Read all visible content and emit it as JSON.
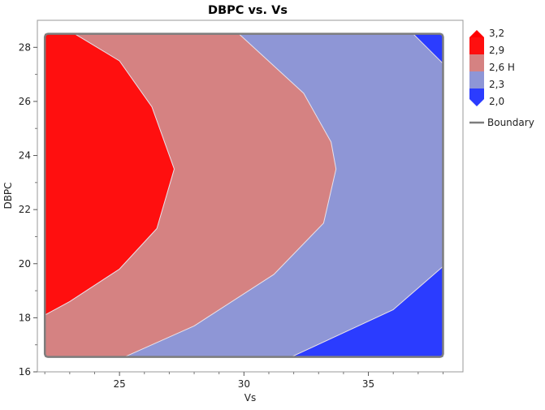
{
  "chart_data": {
    "type": "contour",
    "title": "DBPC vs. Vs",
    "xlabel": "Vs",
    "ylabel": "DBPC",
    "xlim": [
      21.7,
      38.8
    ],
    "ylim": [
      16,
      29
    ],
    "x_ticks": [
      25,
      30,
      35
    ],
    "y_ticks": [
      16,
      18,
      20,
      22,
      24,
      26,
      28
    ],
    "boundary": {
      "name": "Boundary",
      "x": [
        22,
        38
      ],
      "y": [
        16.55,
        28.5
      ]
    },
    "contour_levels": [
      {
        "label": "3,2",
        "value": 3.2,
        "color": "#ff0000"
      },
      {
        "label": "2,9",
        "value": 2.9,
        "color": "#ff0f0f"
      },
      {
        "label": "2,6 H",
        "value": 2.6,
        "color": "#d58282"
      },
      {
        "label": "2,3",
        "value": 2.3,
        "color": "#8e96d6"
      },
      {
        "label": "2,0",
        "value": 2.0,
        "color": "#2b3cff"
      }
    ],
    "contour_lines": [
      {
        "level": 2.9,
        "points": [
          [
            23.2,
            28.5
          ],
          [
            25.0,
            27.5
          ],
          [
            26.3,
            25.8
          ],
          [
            27.2,
            23.5
          ],
          [
            26.5,
            21.3
          ],
          [
            25.0,
            19.8
          ],
          [
            23.0,
            18.6
          ],
          [
            22.0,
            18.1
          ]
        ]
      },
      {
        "level": 2.6,
        "points": [
          [
            29.8,
            28.5
          ],
          [
            32.4,
            26.3
          ],
          [
            33.5,
            24.5
          ],
          [
            33.7,
            23.5
          ],
          [
            33.2,
            21.5
          ],
          [
            31.2,
            19.6
          ],
          [
            28.0,
            17.7
          ],
          [
            25.2,
            16.55
          ]
        ]
      },
      {
        "level": 2.3,
        "points": [
          [
            36.8,
            28.5
          ],
          [
            38.0,
            27.4
          ]
        ]
      },
      {
        "level": 2.3,
        "points": [
          [
            38.0,
            19.9
          ],
          [
            36.0,
            18.3
          ],
          [
            31.9,
            16.55
          ]
        ]
      }
    ],
    "legend_position": "right",
    "legend": [
      {
        "label": "3,2"
      },
      {
        "label": "2,9"
      },
      {
        "label": "2,6 H"
      },
      {
        "label": "2,3"
      },
      {
        "label": "2,0"
      },
      {
        "label": "Boundary"
      }
    ]
  }
}
